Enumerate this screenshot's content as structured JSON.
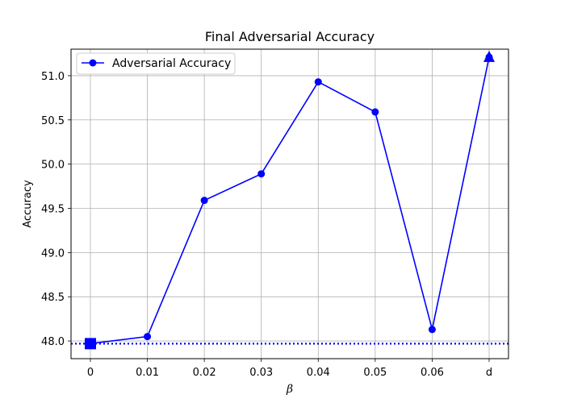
{
  "chart_data": {
    "type": "line",
    "title": "Final Adversarial Accuracy",
    "xlabel": "β",
    "ylabel": "Accuracy",
    "categories": [
      "0",
      "0.01",
      "0.02",
      "0.03",
      "0.04",
      "0.05",
      "0.06",
      "d"
    ],
    "yticks": [
      "48.0",
      "48.5",
      "49.0",
      "49.5",
      "50.0",
      "50.5",
      "51.0"
    ],
    "ylim": [
      47.8,
      51.3
    ],
    "grid": true,
    "legend_position": "top-left",
    "series": [
      {
        "name": "Adversarial Accuracy",
        "values": [
          47.97,
          48.05,
          49.59,
          49.89,
          50.93,
          50.59,
          48.13,
          51.21
        ],
        "color": "#0000ff",
        "marker": "circle",
        "special_markers": {
          "first": "square",
          "last": "triangle"
        }
      }
    ],
    "reference_line": {
      "value": 47.97,
      "style": "dotted",
      "color": "#0000ff"
    }
  }
}
